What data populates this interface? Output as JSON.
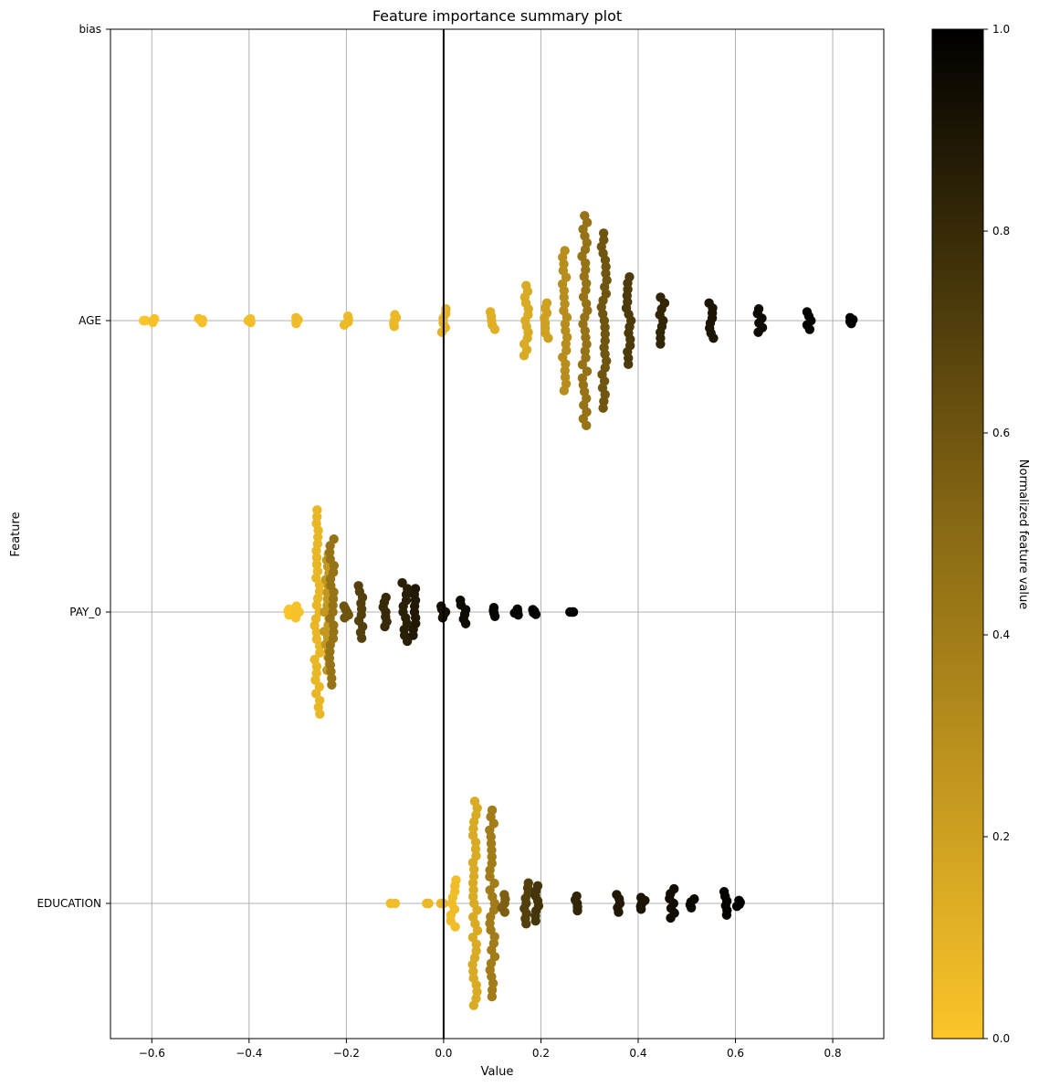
{
  "chart_data": {
    "type": "scatter",
    "title": "Feature importance summary plot",
    "xlabel": "Value",
    "ylabel": "Feature",
    "xlim": [
      -0.685,
      0.905
    ],
    "xticks": [
      -0.6,
      -0.4,
      -0.2,
      0.0,
      0.2,
      0.4,
      0.6,
      0.8
    ],
    "xtick_labels": [
      "−0.6",
      "−0.4",
      "−0.2",
      "0.0",
      "0.2",
      "0.4",
      "0.6",
      "0.8"
    ],
    "features": [
      "bias",
      "AGE",
      "PAY_0",
      "EDUCATION"
    ],
    "grid": true,
    "zero_line": 0.0,
    "colormap": {
      "low": "#fbc52a",
      "mid": "#8a6a14",
      "high": "#000000"
    },
    "colorbar": {
      "label": "Normalized feature value",
      "range": [
        0.0,
        1.0
      ],
      "ticks": [
        "0.0",
        "0.2",
        "0.4",
        "0.6",
        "0.8",
        "1.0"
      ]
    },
    "series": [
      {
        "feature": "AGE",
        "clusters": [
          {
            "x": -0.615,
            "spread": 0.0,
            "color_value": 0.0
          },
          {
            "x": -0.6,
            "spread": 0.006,
            "color_value": 0.02
          },
          {
            "x": -0.5,
            "spread": 0.007,
            "color_value": 0.03
          },
          {
            "x": -0.4,
            "spread": 0.006,
            "color_value": 0.04
          },
          {
            "x": -0.3,
            "spread": 0.01,
            "color_value": 0.05
          },
          {
            "x": -0.2,
            "spread": 0.015,
            "color_value": 0.06
          },
          {
            "x": -0.1,
            "spread": 0.02,
            "color_value": 0.07
          },
          {
            "x": 0.0,
            "spread": 0.04,
            "color_value": 0.1
          },
          {
            "x": 0.1,
            "spread": 0.03,
            "color_value": 0.12
          },
          {
            "x": 0.17,
            "spread": 0.12,
            "color_value": 0.15
          },
          {
            "x": 0.21,
            "spread": 0.06,
            "color_value": 0.2
          },
          {
            "x": 0.25,
            "spread": 0.24,
            "color_value": 0.3
          },
          {
            "x": 0.29,
            "spread": 0.36,
            "color_value": 0.45
          },
          {
            "x": 0.33,
            "spread": 0.3,
            "color_value": 0.6
          },
          {
            "x": 0.38,
            "spread": 0.15,
            "color_value": 0.72
          },
          {
            "x": 0.45,
            "spread": 0.08,
            "color_value": 0.82
          },
          {
            "x": 0.55,
            "spread": 0.06,
            "color_value": 0.9
          },
          {
            "x": 0.65,
            "spread": 0.04,
            "color_value": 0.95
          },
          {
            "x": 0.75,
            "spread": 0.03,
            "color_value": 0.98
          },
          {
            "x": 0.838,
            "spread": 0.01,
            "color_value": 1.0
          }
        ]
      },
      {
        "feature": "PAY_0",
        "clusters": [
          {
            "x": -0.32,
            "spread": 0.01,
            "color_value": 0.0
          },
          {
            "x": -0.3,
            "spread": 0.02,
            "color_value": 0.02
          },
          {
            "x": -0.26,
            "spread": 0.35,
            "color_value": 0.08
          },
          {
            "x": -0.24,
            "spread": 0.2,
            "color_value": 0.25
          },
          {
            "x": -0.23,
            "spread": 0.25,
            "color_value": 0.45
          },
          {
            "x": -0.2,
            "spread": 0.02,
            "color_value": 0.6
          },
          {
            "x": -0.17,
            "spread": 0.09,
            "color_value": 0.7
          },
          {
            "x": -0.12,
            "spread": 0.05,
            "color_value": 0.8
          },
          {
            "x": -0.08,
            "spread": 0.1,
            "color_value": 0.85
          },
          {
            "x": -0.06,
            "spread": 0.08,
            "color_value": 0.88
          },
          {
            "x": 0.0,
            "spread": 0.02,
            "color_value": 0.92
          },
          {
            "x": 0.04,
            "spread": 0.04,
            "color_value": 0.95
          },
          {
            "x": 0.1,
            "spread": 0.015,
            "color_value": 0.97
          },
          {
            "x": 0.15,
            "spread": 0.01,
            "color_value": 0.98
          },
          {
            "x": 0.185,
            "spread": 0.008,
            "color_value": 0.99
          },
          {
            "x": 0.265,
            "spread": 0.0,
            "color_value": 1.0
          }
        ]
      },
      {
        "feature": "EDUCATION",
        "clusters": [
          {
            "x": -0.105,
            "spread": 0.0,
            "color_value": 0.05
          },
          {
            "x": -0.03,
            "spread": 0.0,
            "color_value": 0.07
          },
          {
            "x": -0.005,
            "spread": 0.0,
            "color_value": 0.08
          },
          {
            "x": 0.02,
            "spread": 0.08,
            "color_value": 0.05
          },
          {
            "x": 0.065,
            "spread": 0.35,
            "color_value": 0.15
          },
          {
            "x": 0.1,
            "spread": 0.32,
            "color_value": 0.4
          },
          {
            "x": 0.125,
            "spread": 0.03,
            "color_value": 0.55
          },
          {
            "x": 0.17,
            "spread": 0.07,
            "color_value": 0.7
          },
          {
            "x": 0.19,
            "spread": 0.06,
            "color_value": 0.75
          },
          {
            "x": 0.27,
            "spread": 0.025,
            "color_value": 0.82
          },
          {
            "x": 0.36,
            "spread": 0.03,
            "color_value": 0.88
          },
          {
            "x": 0.41,
            "spread": 0.02,
            "color_value": 0.9
          },
          {
            "x": 0.47,
            "spread": 0.05,
            "color_value": 0.94
          },
          {
            "x": 0.51,
            "spread": 0.015,
            "color_value": 0.96
          },
          {
            "x": 0.58,
            "spread": 0.04,
            "color_value": 0.98
          },
          {
            "x": 0.605,
            "spread": 0.01,
            "color_value": 1.0
          }
        ]
      }
    ]
  }
}
